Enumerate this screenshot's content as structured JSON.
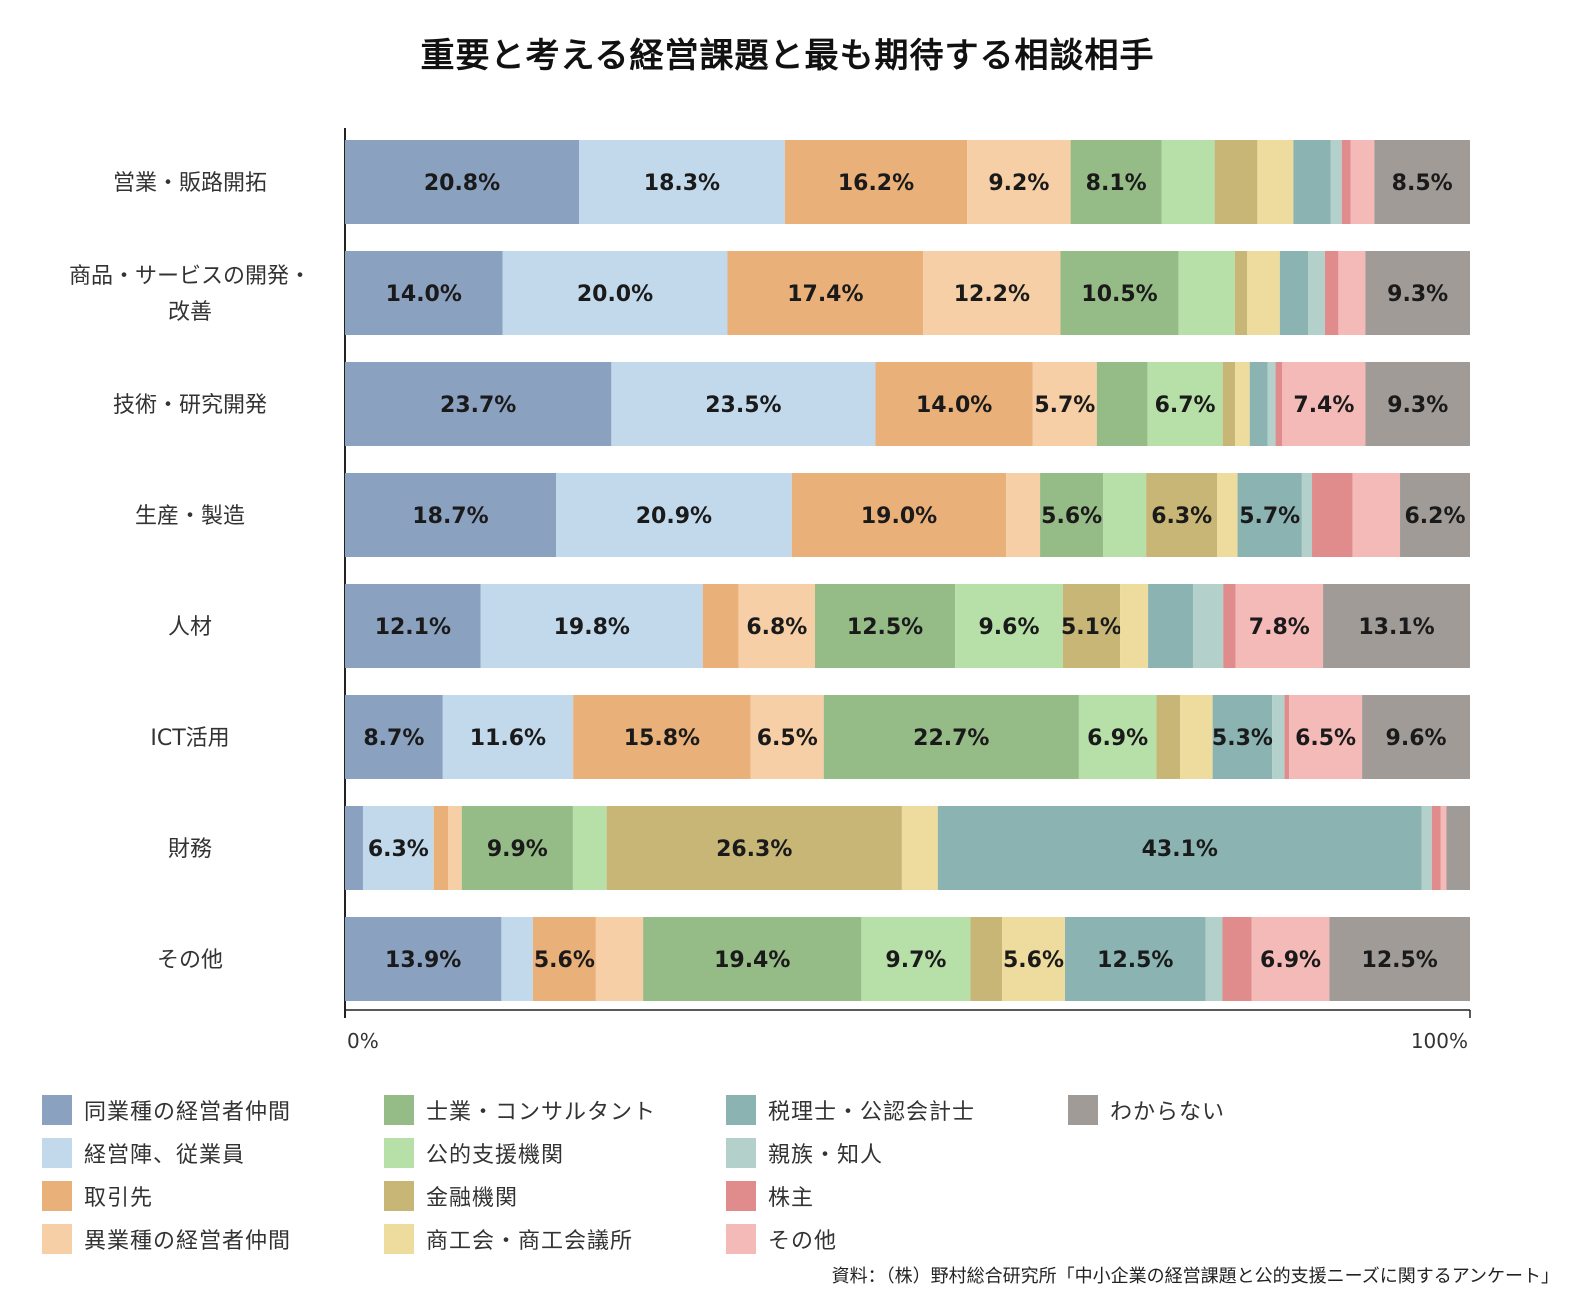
{
  "chart_data": {
    "type": "bar",
    "orientation": "horizontal",
    "stacked": "percent",
    "title": "重要と考える経営課題と最も期待する相談相手",
    "categories": [
      "営業・販路開拓",
      "商品・サービスの開発・改善",
      "技術・研究開発",
      "生産・製造",
      "人材",
      "ICT活用",
      "財務",
      "その他"
    ],
    "category_lines": [
      [
        "営業・販路開拓"
      ],
      [
        "商品・サービスの開発・",
        "改善"
      ],
      [
        "技術・研究開発"
      ],
      [
        "生産・製造"
      ],
      [
        "人材"
      ],
      [
        "ICT活用"
      ],
      [
        "財務"
      ],
      [
        "その他"
      ]
    ],
    "xlim": [
      0,
      100
    ],
    "x_ticks": [
      "0%",
      "100%"
    ],
    "grid": false,
    "legend_position": "bottom",
    "series": [
      {
        "name": "同業種の経営者仲間",
        "color": "#8aa1c0",
        "values": [
          20.8,
          14.0,
          23.7,
          18.7,
          12.1,
          8.7,
          1.6,
          13.9
        ]
      },
      {
        "name": "経営陣、従業員",
        "color": "#c2d9ec",
        "values": [
          18.3,
          20.0,
          23.5,
          20.9,
          19.8,
          11.6,
          6.3,
          2.8
        ]
      },
      {
        "name": "取引先",
        "color": "#eab079",
        "values": [
          16.2,
          17.4,
          14.0,
          19.0,
          3.2,
          15.8,
          1.3,
          5.6
        ]
      },
      {
        "name": "異業種の経営者仲間",
        "color": "#f6cfa6",
        "values": [
          9.2,
          12.2,
          5.7,
          3.0,
          6.8,
          6.5,
          1.2,
          4.2
        ]
      },
      {
        "name": "士業・コンサルタント",
        "color": "#95bb86",
        "values": [
          8.1,
          10.5,
          4.5,
          5.6,
          12.5,
          22.7,
          9.9,
          19.4
        ]
      },
      {
        "name": "公的支援機関",
        "color": "#b7e0a9",
        "values": [
          4.7,
          5.0,
          6.7,
          3.8,
          9.6,
          6.9,
          3.0,
          9.7
        ]
      },
      {
        "name": "金融機関",
        "color": "#c7b676",
        "values": [
          3.8,
          1.1,
          1.1,
          6.3,
          5.1,
          2.1,
          26.3,
          2.8
        ]
      },
      {
        "name": "商工会・商工会議所",
        "color": "#eddc9e",
        "values": [
          3.2,
          2.9,
          1.3,
          1.8,
          2.5,
          2.9,
          3.2,
          5.6
        ]
      },
      {
        "name": "税理士・公認会計士",
        "color": "#8ab3b1",
        "values": [
          3.3,
          2.5,
          1.6,
          5.7,
          4.0,
          5.3,
          43.1,
          12.5
        ]
      },
      {
        "name": "親族・知人",
        "color": "#b3d0cb",
        "values": [
          1.0,
          1.5,
          0.7,
          0.9,
          2.7,
          1.1,
          0.9,
          1.5
        ]
      },
      {
        "name": "株主",
        "color": "#e08b8c",
        "values": [
          0.8,
          1.2,
          0.6,
          3.6,
          1.1,
          0.4,
          0.8,
          2.6
        ]
      },
      {
        "name": "その他",
        "color": "#f4bab8",
        "values": [
          2.1,
          2.4,
          7.4,
          4.2,
          7.8,
          6.5,
          0.5,
          6.9
        ]
      },
      {
        "name": "わからない",
        "color": "#a19b97",
        "values": [
          8.5,
          9.3,
          9.3,
          6.2,
          13.1,
          9.6,
          2.1,
          12.5
        ]
      }
    ],
    "data_labels": [
      [
        "20.8%",
        "18.3%",
        "16.2%",
        "9.2%",
        "8.1%",
        "",
        "",
        "",
        "",
        "",
        "",
        "",
        "8.5%"
      ],
      [
        "14.0%",
        "20.0%",
        "17.4%",
        "12.2%",
        "10.5%",
        "",
        "",
        "",
        "",
        "",
        "",
        "",
        "9.3%"
      ],
      [
        "23.7%",
        "23.5%",
        "14.0%",
        "5.7%",
        "",
        "6.7%",
        "",
        "",
        "",
        "",
        "",
        "7.4%",
        "9.3%"
      ],
      [
        "18.7%",
        "20.9%",
        "19.0%",
        "",
        "5.6%",
        "",
        "6.3%",
        "",
        "5.7%",
        "",
        "",
        "",
        "6.2%"
      ],
      [
        "12.1%",
        "19.8%",
        "",
        "6.8%",
        "12.5%",
        "9.6%",
        "5.1%",
        "",
        "",
        "",
        "",
        "7.8%",
        "13.1%"
      ],
      [
        "8.7%",
        "11.6%",
        "15.8%",
        "6.5%",
        "22.7%",
        "6.9%",
        "",
        "",
        "5.3%",
        "",
        "",
        "6.5%",
        "9.6%"
      ],
      [
        "",
        "6.3%",
        "",
        "",
        "9.9%",
        "",
        "26.3%",
        "",
        "43.1%",
        "",
        "",
        "",
        ""
      ],
      [
        "13.9%",
        "",
        "5.6%",
        "",
        "19.4%",
        "9.7%",
        "",
        "5.6%",
        "12.5%",
        "",
        "",
        "6.9%",
        "12.5%"
      ]
    ]
  },
  "source_note": "資料：（株）野村総合研究所「中小企業の経営課題と公的支援ニーズに関するアンケート」"
}
